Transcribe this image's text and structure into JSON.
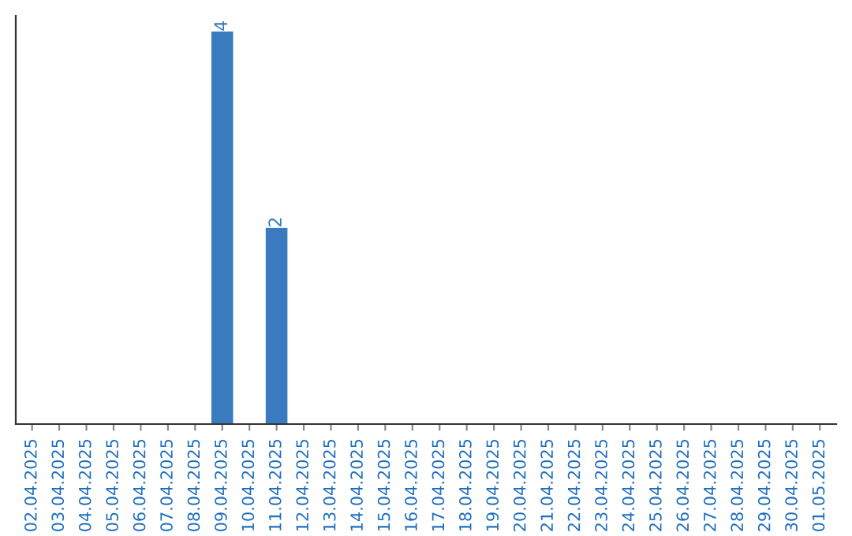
{
  "chart_data": {
    "type": "bar",
    "categories": [
      "02.04.2025",
      "03.04.2025",
      "04.04.2025",
      "05.04.2025",
      "06.04.2025",
      "07.04.2025",
      "08.04.2025",
      "09.04.2025",
      "10.04.2025",
      "11.04.2025",
      "12.04.2025",
      "13.04.2025",
      "14.04.2025",
      "15.04.2025",
      "16.04.2025",
      "17.04.2025",
      "18.04.2025",
      "19.04.2025",
      "20.04.2025",
      "21.04.2025",
      "22.04.2025",
      "23.04.2025",
      "24.04.2025",
      "25.04.2025",
      "26.04.2025",
      "27.04.2025",
      "28.04.2025",
      "29.04.2025",
      "30.04.2025",
      "01.05.2025"
    ],
    "values": [
      0,
      0,
      0,
      0,
      0,
      0,
      0,
      4,
      0,
      2,
      0,
      0,
      0,
      0,
      0,
      0,
      0,
      0,
      0,
      0,
      0,
      0,
      0,
      0,
      0,
      0,
      0,
      0,
      0,
      0
    ],
    "value_labels": [
      null,
      null,
      null,
      null,
      null,
      null,
      null,
      "4",
      null,
      "2",
      null,
      null,
      null,
      null,
      null,
      null,
      null,
      null,
      null,
      null,
      null,
      null,
      null,
      null,
      null,
      null,
      null,
      null,
      null,
      null
    ],
    "color": "#3a7bc0",
    "tick_labels": "x",
    "grid": false,
    "legend": false
  }
}
